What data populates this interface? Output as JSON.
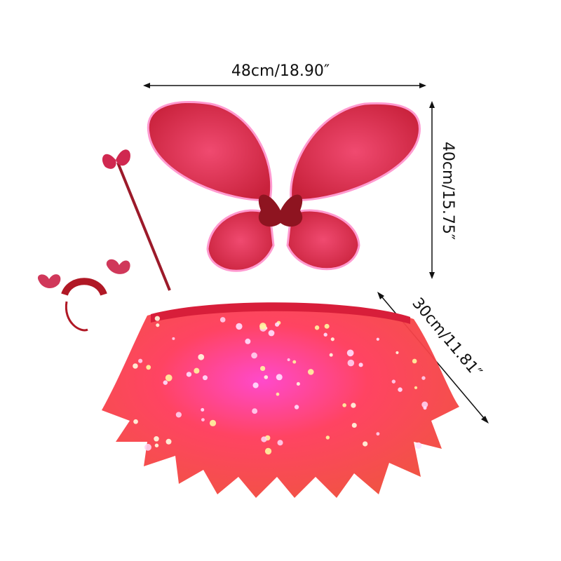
{
  "dimensions": {
    "width_label": "48cm/18.90″",
    "height_label": "40cm/15.75″",
    "skirt_label": "30cm/11.81″"
  },
  "colors": {
    "wing": "#e8374f",
    "skirt": "#f0304a",
    "glow": "#ff4fd0",
    "arrow": "#111111"
  }
}
